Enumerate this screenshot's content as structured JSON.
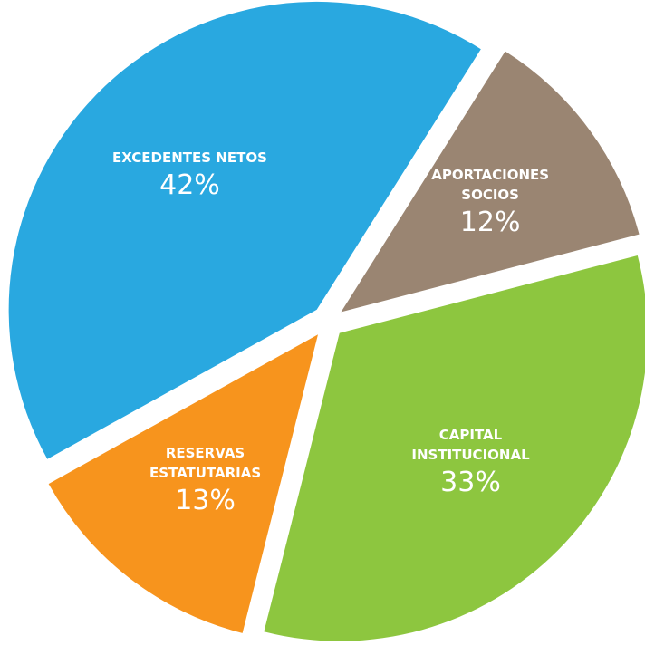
{
  "chart_data": {
    "type": "pie",
    "categories": [
      "EXCEDENTES NETOS",
      "APORTACIONES\nSOCIOS",
      "CAPITAL\nINSTITUCIONAL",
      "RESERVAS\nESTATUTARIAS"
    ],
    "values": [
      42,
      12,
      33,
      13
    ],
    "value_labels": [
      "42%",
      "12%",
      "33%",
      "13%"
    ],
    "colors": [
      "#29a8e0",
      "#9a8572",
      "#8dc63f",
      "#f7941d"
    ]
  }
}
